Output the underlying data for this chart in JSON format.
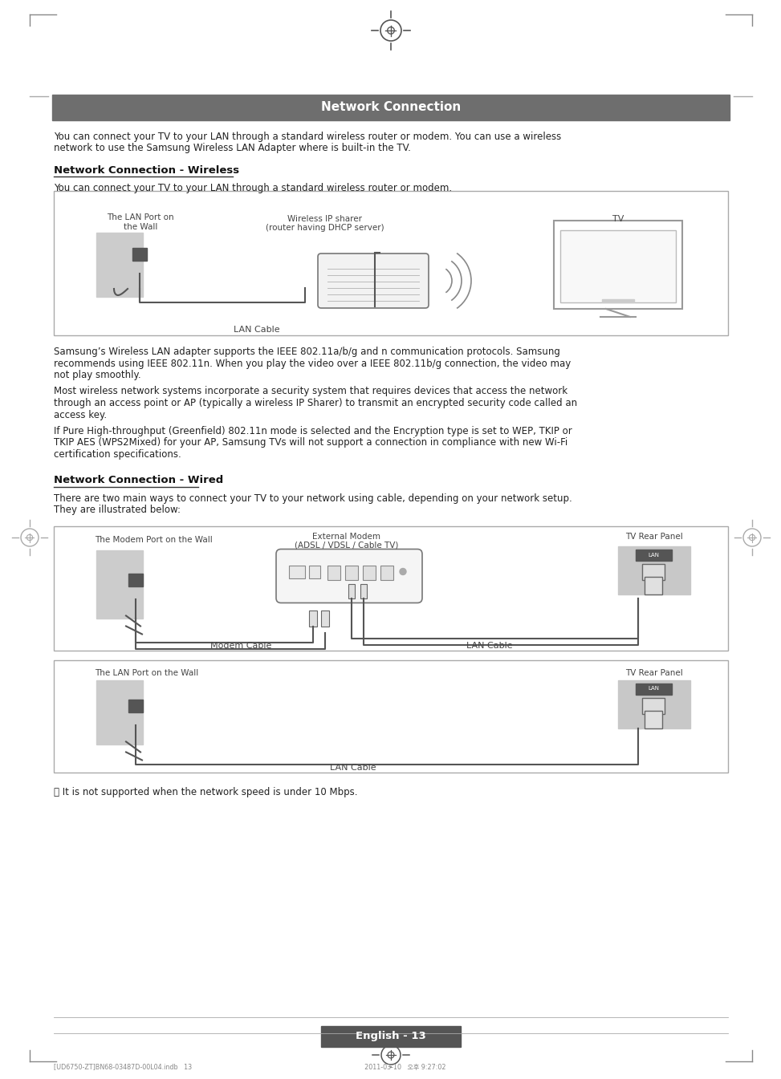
{
  "title": "Network Connection",
  "title_bg": "#6e6e6e",
  "title_color": "#ffffff",
  "page_bg": "#ffffff",
  "intro_text1": "You can connect your TV to your LAN through a standard wireless router or modem. You can use a wireless",
  "intro_text2": "network to use the Samsung Wireless LAN Adapter where is built-in the TV.",
  "section1_title": "Network Connection - Wireless",
  "section1_intro": "You can connect your TV to your LAN through a standard wireless router or modem.",
  "section2_title": "Network Connection - Wired",
  "section2_intro1": "There are two main ways to connect your TV to your network using cable, depending on your network setup.",
  "section2_intro2": "They are illustrated below:",
  "para1_l1": "Samsung’s Wireless LAN adapter supports the IEEE 802.11a/b/g and n communication protocols. Samsung",
  "para1_l2": "recommends using IEEE 802.11n. When you play the video over a IEEE 802.11b/g connection, the video may",
  "para1_l3": "not play smoothly.",
  "para2_l1": "Most wireless network systems incorporate a security system that requires devices that access the network",
  "para2_l2": "through an access point or AP (typically a wireless IP Sharer) to transmit an encrypted security code called an",
  "para2_l3": "access key.",
  "para3_l1": "If Pure High-throughput (Greenfield) 802.11n mode is selected and the Encryption type is set to WEP, TKIP or",
  "para3_l2": "TKIP AES (WPS2Mixed) for your AP, Samsung TVs will not support a connection in compliance with new Wi-Fi",
  "para3_l3": "certification specifications.",
  "note": "␹ It is not supported when the network speed is under 10 Mbps.",
  "footer_text": "English - 13",
  "footer_small": "[UD6750-ZT]BN68-03487D-00L04.indb   13                                                                                      2011-03-10   오후 9:27:02"
}
